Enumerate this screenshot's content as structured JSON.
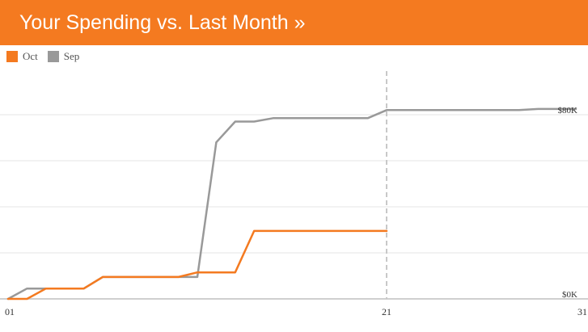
{
  "header": {
    "title": "Your Spending vs. Last Month »"
  },
  "colors": {
    "header_bg": "#f47a20",
    "oct": "#f47a20",
    "sep": "#999999"
  },
  "chart_data": {
    "type": "line",
    "title": "Your Spending vs. Last Month »",
    "xlabel": "",
    "ylabel": "",
    "xlim": [
      1,
      31
    ],
    "ylim": [
      0,
      80000
    ],
    "x_ticks": [
      "01",
      "21",
      "31"
    ],
    "y_ticks": [
      "$0K",
      "$80K"
    ],
    "current_day_marker": 21,
    "legend_position": "top-left",
    "grid": true,
    "series": [
      {
        "name": "Oct",
        "color": "#f47a20",
        "points": [
          [
            1,
            0
          ],
          [
            2,
            0
          ],
          [
            3,
            4500
          ],
          [
            5,
            4500
          ],
          [
            6,
            9500
          ],
          [
            10,
            9500
          ],
          [
            11,
            11500
          ],
          [
            13,
            11500
          ],
          [
            14,
            29500
          ],
          [
            21,
            29500
          ]
        ]
      },
      {
        "name": "Sep",
        "color": "#999999",
        "points": [
          [
            1,
            0
          ],
          [
            2,
            4500
          ],
          [
            5,
            4500
          ],
          [
            6,
            9500
          ],
          [
            11,
            9500
          ],
          [
            12,
            68000
          ],
          [
            13,
            77000
          ],
          [
            14,
            77000
          ],
          [
            15,
            78500
          ],
          [
            20,
            78500
          ],
          [
            21,
            82000
          ],
          [
            28,
            82000
          ],
          [
            29,
            82500
          ],
          [
            31,
            82500
          ]
        ]
      }
    ]
  }
}
